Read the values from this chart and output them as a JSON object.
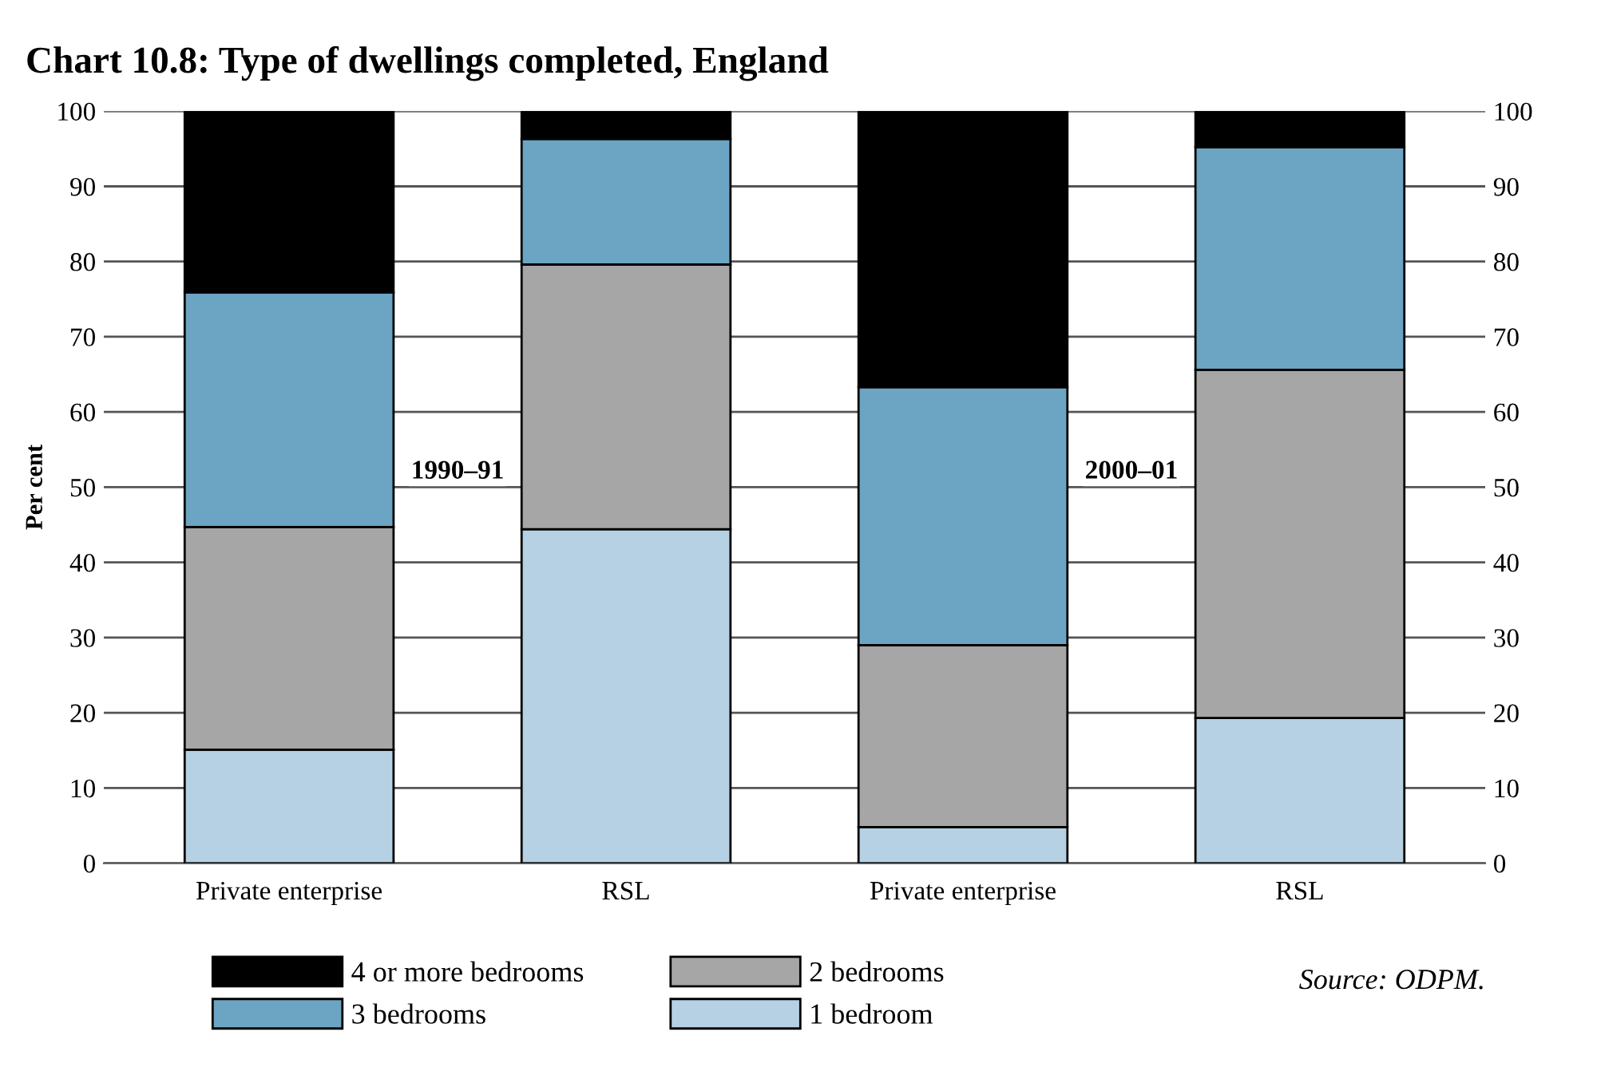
{
  "chart_data": {
    "type": "bar",
    "title": "Chart 10.8: Type of dwellings completed, England",
    "ylabel": "Per cent",
    "categories": [
      "Private enterprise",
      "RSL",
      "Private enterprise",
      "RSL"
    ],
    "stacked": true,
    "series": [
      {
        "name": "1 bedroom",
        "color": "#b6d1e3",
        "values": [
          15.1,
          44.4,
          4.8,
          19.3
        ]
      },
      {
        "name": "2 bedrooms",
        "color": "#a6a6a6",
        "values": [
          29.6,
          35.2,
          24.2,
          46.3
        ]
      },
      {
        "name": "3 bedrooms",
        "color": "#6ca4c3",
        "values": [
          31.2,
          16.7,
          34.3,
          29.6
        ]
      },
      {
        "name": "4 or more bedrooms",
        "color": "#000000",
        "values": [
          24.1,
          3.7,
          36.7,
          4.8
        ]
      }
    ],
    "ylim": [
      0,
      100
    ],
    "yticks": [
      0,
      10,
      20,
      30,
      40,
      50,
      60,
      70,
      80,
      90,
      100
    ],
    "y2lim": [
      0,
      100
    ],
    "y2ticks": [
      0,
      10,
      20,
      30,
      40,
      50,
      60,
      70,
      80,
      90,
      100
    ],
    "grid": "y",
    "legend": "bottom",
    "annotations": [
      "1990–91",
      "2000–01",
      "Source: ODPM."
    ]
  }
}
